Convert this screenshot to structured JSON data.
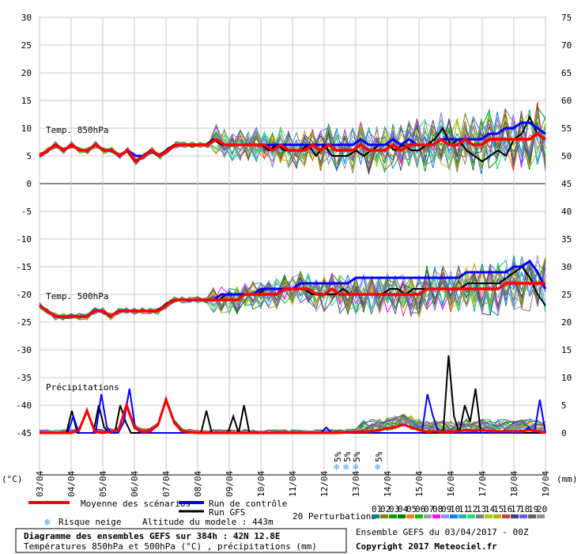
{
  "chart_data": {
    "type": "line",
    "title": "Diagramme des ensembles GEFS sur 384h : 42N 12.8E",
    "subtitle": "Températures 850hPa et 500hPa (°C) , précipitations (mm)",
    "run_info": "Ensemble GEFS du 03/04/2017 - 00Z",
    "copyright": "Copyright 2017 Meteociel.fr",
    "altitude": "Altitude du modele : 443m",
    "left_unit": "(°C)",
    "right_unit": "(mm)",
    "x_ticks": [
      "03/04",
      "04/04",
      "05/04",
      "06/04",
      "07/04",
      "08/04",
      "09/04",
      "10/04",
      "11/04",
      "12/04",
      "13/04",
      "14/04",
      "15/04",
      "16/04",
      "17/04",
      "18/04",
      "19/04"
    ],
    "y_left_ticks": [
      "30",
      "25",
      "20",
      "15",
      "10",
      "5",
      "0",
      "-5",
      "-10",
      "-15",
      "-20",
      "-25",
      "-30",
      "-35",
      "-40",
      "-45"
    ],
    "y_right_ticks": [
      "75",
      "70",
      "65",
      "60",
      "55",
      "50",
      "45",
      "40",
      "35",
      "30",
      "25",
      "20",
      "15",
      "10",
      "5",
      "0"
    ],
    "panel_labels": {
      "t850": "Temp. 850hPa",
      "t500": "Temp. 500hPa",
      "precip": "Précipitations"
    },
    "snow_markers": [
      "5%",
      "5%",
      "5%",
      "5%"
    ],
    "legend": {
      "mean": "Moyenne des scénarios",
      "control": "Run de contrôle",
      "gfs": "Run GFS",
      "snow": "Risque neige",
      "perturbations": "20 Perturbations",
      "pert_numbers": [
        "01",
        "02",
        "03",
        "04",
        "05",
        "06",
        "07",
        "08",
        "09",
        "10",
        "11",
        "12",
        "13",
        "14",
        "15",
        "16",
        "17",
        "18",
        "19",
        "20"
      ]
    },
    "colors": {
      "mean": "#ff0000",
      "control": "#0000ff",
      "gfs": "#000000"
    },
    "pert_colors": [
      "#008080",
      "#808000",
      "#00a000",
      "#008000",
      "#ff8000",
      "#00c000",
      "#a0a0a0",
      "#ff00ff",
      "#9090ff",
      "#0080ff",
      "#20b0b0",
      "#20e070",
      "#808080",
      "#a0d000",
      "#b0b000",
      "#c04040",
      "#404080",
      "#6060ff",
      "#606060",
      "#909090"
    ],
    "series": [
      {
        "name": "Moyenne des scénarios",
        "t850": [
          5,
          6,
          7,
          6,
          7,
          6,
          6,
          7,
          6,
          6,
          5,
          6,
          4,
          5,
          6,
          5,
          6,
          7,
          7,
          7,
          7,
          7,
          8,
          7,
          7,
          7,
          7,
          7,
          7,
          6,
          7,
          6,
          6,
          6,
          7,
          6,
          7,
          6,
          6,
          6,
          7,
          6,
          6,
          6,
          7,
          6,
          7,
          7,
          7,
          7,
          8,
          7,
          7,
          8,
          7,
          7,
          8,
          8,
          8,
          8,
          8,
          8,
          9,
          8
        ],
        "t500": [
          -22,
          -23,
          -24,
          -24,
          -24,
          -24,
          -24,
          -23,
          -23,
          -24,
          -23,
          -23,
          -23,
          -23,
          -23,
          -23,
          -22,
          -21,
          -21,
          -21,
          -21,
          -21,
          -21,
          -21,
          -21,
          -21,
          -20,
          -20,
          -20,
          -20,
          -20,
          -19,
          -19,
          -19,
          -19,
          -20,
          -20,
          -19,
          -20,
          -20,
          -20,
          -20,
          -20,
          -20,
          -20,
          -20,
          -20,
          -20,
          -20,
          -19,
          -19,
          -19,
          -19,
          -19,
          -19,
          -19,
          -19,
          -19,
          -19,
          -18,
          -18,
          -18,
          -18,
          -18,
          -18
        ],
        "precip": [
          0,
          0,
          0,
          0,
          0,
          0.5,
          4,
          0.2,
          0,
          0.2,
          0.5,
          5,
          1,
          0.2,
          0.3,
          1.5,
          6,
          2,
          0.3,
          0.1,
          0,
          0,
          0,
          0,
          0,
          0,
          0,
          0,
          0,
          0,
          0,
          0,
          0,
          0,
          0,
          0,
          0,
          0,
          0,
          0.1,
          0.2,
          0.2,
          0.3,
          0.5,
          0.8,
          1,
          1.5,
          1,
          0.5,
          0.2,
          0.3,
          0.2,
          0.2,
          0.3,
          0.5,
          0.3,
          0.5,
          0.3,
          0.3,
          0.3,
          0.3,
          0.3,
          0.5,
          0.3,
          0
        ]
      },
      {
        "name": "Run de contrôle",
        "t850": [
          5,
          6,
          7,
          6,
          7,
          6,
          6,
          7,
          6,
          6,
          5,
          6,
          5,
          5,
          6,
          5,
          6,
          7,
          7,
          7,
          7,
          7,
          8,
          7,
          7,
          7,
          7,
          7,
          7,
          7,
          7,
          7,
          7,
          7,
          7,
          7,
          7,
          7,
          7,
          7,
          8,
          7,
          7,
          7,
          8,
          7,
          8,
          7,
          7,
          7,
          8,
          8,
          8,
          8,
          8,
          8,
          9,
          9,
          10,
          10,
          11,
          11,
          10,
          9
        ],
        "t500": [
          -22,
          -23,
          -24,
          -24,
          -24,
          -24,
          -24,
          -23,
          -23,
          -24,
          -23,
          -23,
          -23,
          -23,
          -23,
          -23,
          -22,
          -21,
          -21,
          -21,
          -21,
          -21,
          -21,
          -20,
          -20,
          -20,
          -20,
          -20,
          -19,
          -19,
          -19,
          -19,
          -19,
          -18,
          -18,
          -18,
          -18,
          -18,
          -18,
          -18,
          -17,
          -17,
          -17,
          -17,
          -17,
          -17,
          -17,
          -17,
          -17,
          -17,
          -17,
          -17,
          -17,
          -17,
          -16,
          -16,
          -16,
          -16,
          -16,
          -16,
          -15,
          -15,
          -14,
          -16,
          -19
        ],
        "precip": [
          0,
          0,
          0,
          0,
          0,
          0,
          3,
          0,
          0,
          0,
          0,
          7,
          1,
          0,
          0,
          2,
          8,
          1,
          0,
          0,
          0,
          0,
          0,
          0,
          0,
          0,
          0,
          0,
          0,
          0,
          0,
          0,
          0,
          0,
          0,
          0,
          0,
          0,
          0,
          0,
          0,
          0,
          0,
          0,
          0,
          0,
          0,
          0,
          0,
          0,
          0,
          1,
          0,
          0,
          0,
          0,
          0,
          0,
          0,
          0,
          0,
          0,
          0,
          0,
          0,
          0,
          0,
          0,
          0,
          7,
          3,
          0,
          0,
          0,
          0,
          0,
          0,
          0,
          0,
          0,
          0,
          0,
          0,
          0,
          0,
          0,
          0,
          1,
          0,
          6,
          0
        ]
      },
      {
        "name": "Run GFS",
        "t850": [
          5,
          6,
          7,
          6,
          7,
          6,
          6,
          7,
          6,
          6,
          5,
          6,
          4,
          5,
          6,
          5,
          6,
          7,
          7,
          7,
          7,
          7,
          8,
          7,
          7,
          7,
          7,
          7,
          7,
          6,
          7,
          6,
          6,
          6,
          7,
          5,
          7,
          5,
          5,
          5,
          6,
          5,
          6,
          7,
          7,
          6,
          7,
          6,
          6,
          7,
          8,
          10,
          7,
          8,
          6,
          5,
          4,
          5,
          6,
          5,
          8,
          9,
          12,
          9,
          8
        ],
        "t500": [
          -22,
          -23,
          -24,
          -24,
          -24,
          -24,
          -24,
          -23,
          -23,
          -24,
          -23,
          -23,
          -23,
          -23,
          -23,
          -23,
          -22,
          -21,
          -21,
          -21,
          -21,
          -21,
          -21,
          -21,
          -20,
          -20,
          -20,
          -20,
          -20,
          -19,
          -19,
          -19,
          -19,
          -19,
          -19,
          -20,
          -20,
          -20,
          -20,
          -19,
          -20,
          -20,
          -20,
          -20,
          -20,
          -19,
          -19,
          -20,
          -19,
          -19,
          -19,
          -19,
          -19,
          -19,
          -19,
          -18,
          -18,
          -18,
          -18,
          -18,
          -17,
          -16,
          -15,
          -17,
          -20,
          -22
        ],
        "precip": [
          0,
          0,
          0,
          0,
          0,
          0,
          4,
          0,
          0,
          0,
          0,
          5,
          1,
          0,
          0,
          5,
          2,
          0,
          0,
          0,
          0,
          0,
          0,
          0,
          0,
          0,
          0,
          0,
          0,
          0,
          0,
          4,
          0,
          0,
          0,
          0,
          3,
          0,
          5,
          0,
          0,
          0,
          0,
          0,
          0,
          0,
          0,
          0,
          0,
          0,
          0,
          0,
          0,
          0,
          0,
          0,
          0,
          0,
          0,
          0,
          0,
          0,
          0,
          0,
          0,
          0,
          0,
          0,
          0,
          0,
          0,
          0,
          0,
          0,
          0,
          0,
          14,
          3,
          0,
          5,
          2,
          8,
          0,
          0,
          0,
          0,
          0,
          0,
          0,
          0,
          0,
          0,
          0,
          0,
          0
        ]
      }
    ],
    "ylim_left": [
      -45,
      30
    ],
    "ylim_right_precip": [
      0,
      15
    ],
    "ylim_right_temp": [
      45,
      75
    ],
    "grid": true
  }
}
